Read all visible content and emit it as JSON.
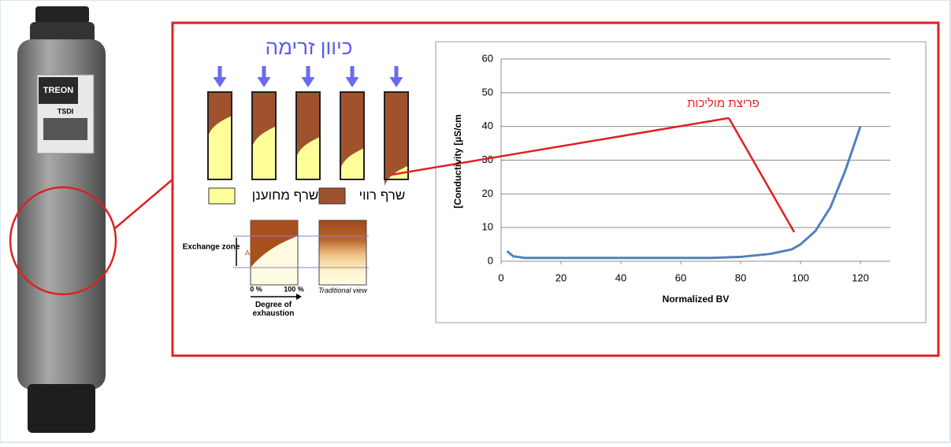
{
  "tank": {
    "brand": "TREON",
    "model": "TSDI"
  },
  "flow_diagram": {
    "title": "כיוון זרימה",
    "legend": {
      "regenerated": "שרף מחוענן",
      "exhausted": "שרף רווי"
    }
  },
  "exchange_zone": {
    "zone_label": "Exchange zone",
    "marker": "A",
    "start": "0 %",
    "end": "100 %",
    "axis_label": "Degree of exhaustion",
    "traditional": "Traditional view"
  },
  "chart_data": {
    "type": "line",
    "x_label": "Normalized BV",
    "y_label": "[Conductivity [µS/cm",
    "annotation": "פריצת מוליכות",
    "x": [
      2,
      4,
      8,
      20,
      40,
      60,
      70,
      80,
      90,
      97,
      100,
      105,
      110,
      115,
      120
    ],
    "series": [
      {
        "name": "Conductivity",
        "color": "#4f81bd",
        "values": [
          3,
          1.5,
          1,
          1,
          1,
          1,
          1,
          1.3,
          2.2,
          3.5,
          5,
          9,
          16,
          27,
          40
        ]
      }
    ],
    "xlim": [
      0,
      130
    ],
    "xticks": [
      0,
      20,
      40,
      60,
      80,
      100,
      120
    ],
    "ylim": [
      0,
      60
    ],
    "yticks": [
      0,
      10,
      20,
      30,
      40,
      50,
      60
    ],
    "grid": true
  }
}
